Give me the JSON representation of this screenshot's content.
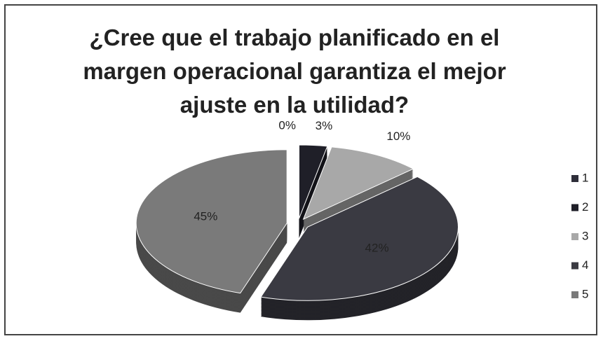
{
  "chart_data": {
    "type": "pie",
    "title": "¿Cree que el trabajo planificado en el margen operacional garantiza el mejor ajuste en la utilidad?",
    "categories": [
      "1",
      "2",
      "3",
      "4",
      "5"
    ],
    "values": [
      0,
      3,
      10,
      42,
      45
    ],
    "value_labels": [
      "0%",
      "3%",
      "10%",
      "42%",
      "45%"
    ],
    "colors": [
      "#2e2e3a",
      "#1f1f28",
      "#a8a8a8",
      "#3a3a42",
      "#7a7a7a"
    ],
    "legend": "right"
  }
}
